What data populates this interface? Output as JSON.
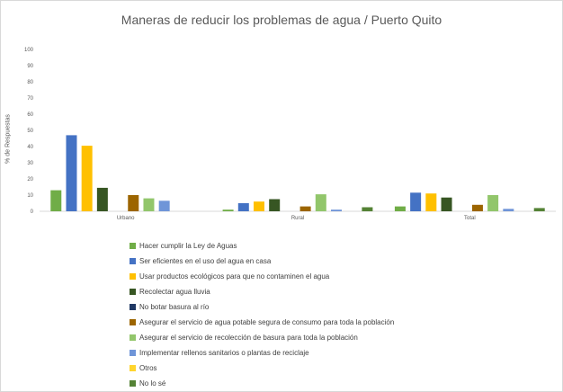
{
  "chart_data": {
    "type": "bar",
    "title": "Maneras de reducir los problemas de agua / Puerto Quito",
    "xlabel": "",
    "ylabel": "% de Respuestas",
    "ylim": [
      0,
      100
    ],
    "yticks": [
      0,
      10,
      20,
      30,
      40,
      50,
      60,
      70,
      80,
      90,
      100
    ],
    "grid": false,
    "legend_position": "bottom",
    "categories": [
      "Urbano",
      "Rural",
      "Total"
    ],
    "series": [
      {
        "name": "Hacer cumplir la Ley de Aguas",
        "color": "#70ad47",
        "values": [
          13,
          1,
          3
        ]
      },
      {
        "name": "Ser eficientes en el uso del agua en casa",
        "color": "#4472c4",
        "values": [
          47,
          5,
          11.5
        ]
      },
      {
        "name": "Usar productos ecológicos para que no contaminen el agua",
        "color": "#ffc000",
        "values": [
          40.5,
          6,
          11
        ]
      },
      {
        "name": "Recolectar agua lluvia",
        "color": "#375623",
        "values": [
          14.5,
          7.5,
          8.5
        ]
      },
      {
        "name": "No botar basura al río",
        "color": "#203864",
        "values": [
          0,
          0,
          0
        ]
      },
      {
        "name": "Asegurar el servicio de agua potable segura de consumo para toda la población",
        "color": "#9c6500",
        "values": [
          10,
          3,
          4
        ]
      },
      {
        "name": "Asegurar el servicio de recolección de basura para toda la población",
        "color": "#92c66b",
        "values": [
          8,
          10.5,
          10
        ]
      },
      {
        "name": "Implementar rellenos sanitarios o plantas de reciclaje",
        "color": "#6f95d8",
        "values": [
          6.5,
          1,
          1.5
        ]
      },
      {
        "name": "Otros",
        "color": "#ffd52e",
        "values": [
          0,
          0,
          0
        ]
      },
      {
        "name": "No lo sé",
        "color": "#548235",
        "values": [
          0,
          2.5,
          2
        ]
      }
    ]
  }
}
